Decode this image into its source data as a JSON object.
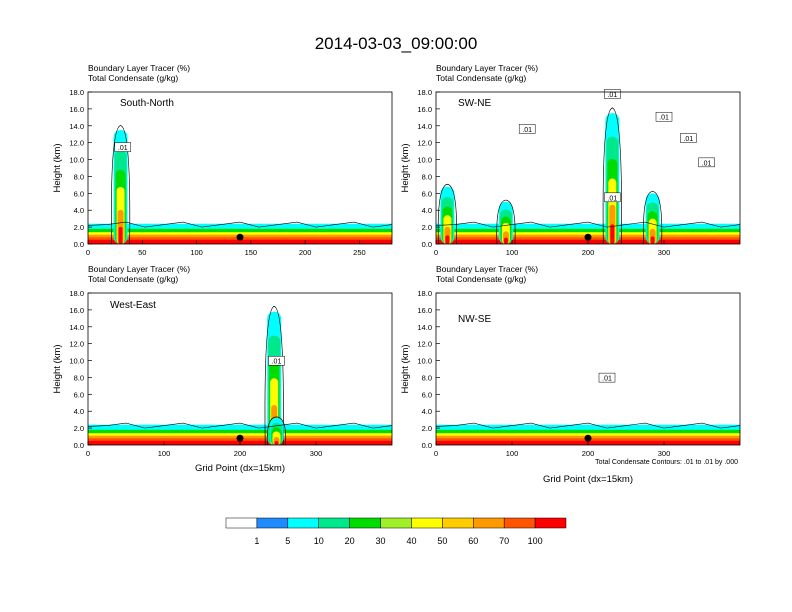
{
  "figure": {
    "title": "2014-03-03_09:00:00",
    "contour_note": "Total Condensate Contours: .01 to .01 by .000"
  },
  "chart_data": [
    {
      "type": "heatmap",
      "panel": "South-North",
      "label_line1": "Boundary Layer Tracer   (%)",
      "label_line2": "Total Condensate   (g/kg)",
      "ylabel": "Height (km)",
      "xlabel": "",
      "xlim": [
        0,
        280
      ],
      "ylim": [
        0,
        18
      ],
      "xticks": [
        "0",
        "50",
        "100",
        "150",
        "200",
        "250"
      ],
      "xtick_values": [
        0,
        50,
        100,
        150,
        200,
        250
      ],
      "yticks": [
        "0.0",
        "2.0",
        "4.0",
        "6.0",
        "8.0",
        "10.0",
        "12.0",
        "14.0",
        "16.0",
        "18.0"
      ],
      "contour_labels": [
        ".01"
      ],
      "point_marker_x": 140,
      "plumes": [
        {
          "x": 30,
          "top_km": 13.5
        }
      ]
    },
    {
      "type": "heatmap",
      "panel": "SW-NE",
      "label_line1": "Boundary Layer Tracer   (%)",
      "label_line2": "Total Condensate   (g/kg)",
      "ylabel": "Height (km)",
      "xlabel": "",
      "xlim": [
        0,
        400
      ],
      "ylim": [
        0,
        18
      ],
      "xticks": [
        "0",
        "100",
        "200",
        "300"
      ],
      "xtick_values": [
        0,
        100,
        200,
        300
      ],
      "yticks": [
        "0.0",
        "2.0",
        "4.0",
        "6.0",
        "8.0",
        "10.0",
        "12.0",
        "14.0",
        "16.0",
        "18.0"
      ],
      "contour_labels": [
        ".01",
        ".01",
        ".01",
        ".01",
        ".01",
        ".01"
      ],
      "point_marker_x": 200,
      "plumes": [
        {
          "x": 15,
          "top_km": 6.8
        },
        {
          "x": 92,
          "top_km": 5.0
        },
        {
          "x": 232,
          "top_km": 15.5
        },
        {
          "x": 285,
          "top_km": 6.0
        }
      ]
    },
    {
      "type": "heatmap",
      "panel": "West-East",
      "label_line1": "Boundary Layer Tracer   (%)",
      "label_line2": "Total Condensate   (g/kg)",
      "ylabel": "Height (km)",
      "xlabel": "Grid Point (dx=15km)",
      "xlim": [
        0,
        400
      ],
      "ylim": [
        0,
        18
      ],
      "xticks": [
        "0",
        "100",
        "200",
        "300"
      ],
      "xtick_values": [
        0,
        100,
        200,
        300
      ],
      "yticks": [
        "0.0",
        "2.0",
        "4.0",
        "6.0",
        "8.0",
        "10.0",
        "12.0",
        "14.0",
        "16.0",
        "18.0"
      ],
      "contour_labels": [
        ".01"
      ],
      "point_marker_x": 200,
      "plumes": [
        {
          "x": 245,
          "top_km": 15.8
        },
        {
          "x": 248,
          "top_km": 3.2
        }
      ]
    },
    {
      "type": "heatmap",
      "panel": "NW-SE",
      "label_line1": "Boundary Layer Tracer   (%)",
      "label_line2": "Total Condensate   (g/kg)",
      "ylabel": "Height (km)",
      "xlabel": "Grid Point (dx=15km)",
      "xlim": [
        0,
        400
      ],
      "ylim": [
        0,
        18
      ],
      "xticks": [
        "0",
        "100",
        "200",
        "300"
      ],
      "xtick_values": [
        0,
        100,
        200,
        300
      ],
      "yticks": [
        "0.0",
        "2.0",
        "4.0",
        "6.0",
        "8.0",
        "10.0",
        "12.0",
        "14.0",
        "16.0",
        "18.0"
      ],
      "contour_labels": [
        ".01"
      ],
      "point_marker_x": 200,
      "plumes": []
    }
  ],
  "colorbar": {
    "colors": [
      "#ffffff",
      "#1e8cff",
      "#00ffff",
      "#00e88c",
      "#00dc00",
      "#a0f028",
      "#ffff00",
      "#ffcc00",
      "#ff9900",
      "#ff5500",
      "#ff0000"
    ],
    "labels": [
      "1",
      "5",
      "10",
      "20",
      "30",
      "40",
      "50",
      "60",
      "70",
      "100"
    ]
  }
}
